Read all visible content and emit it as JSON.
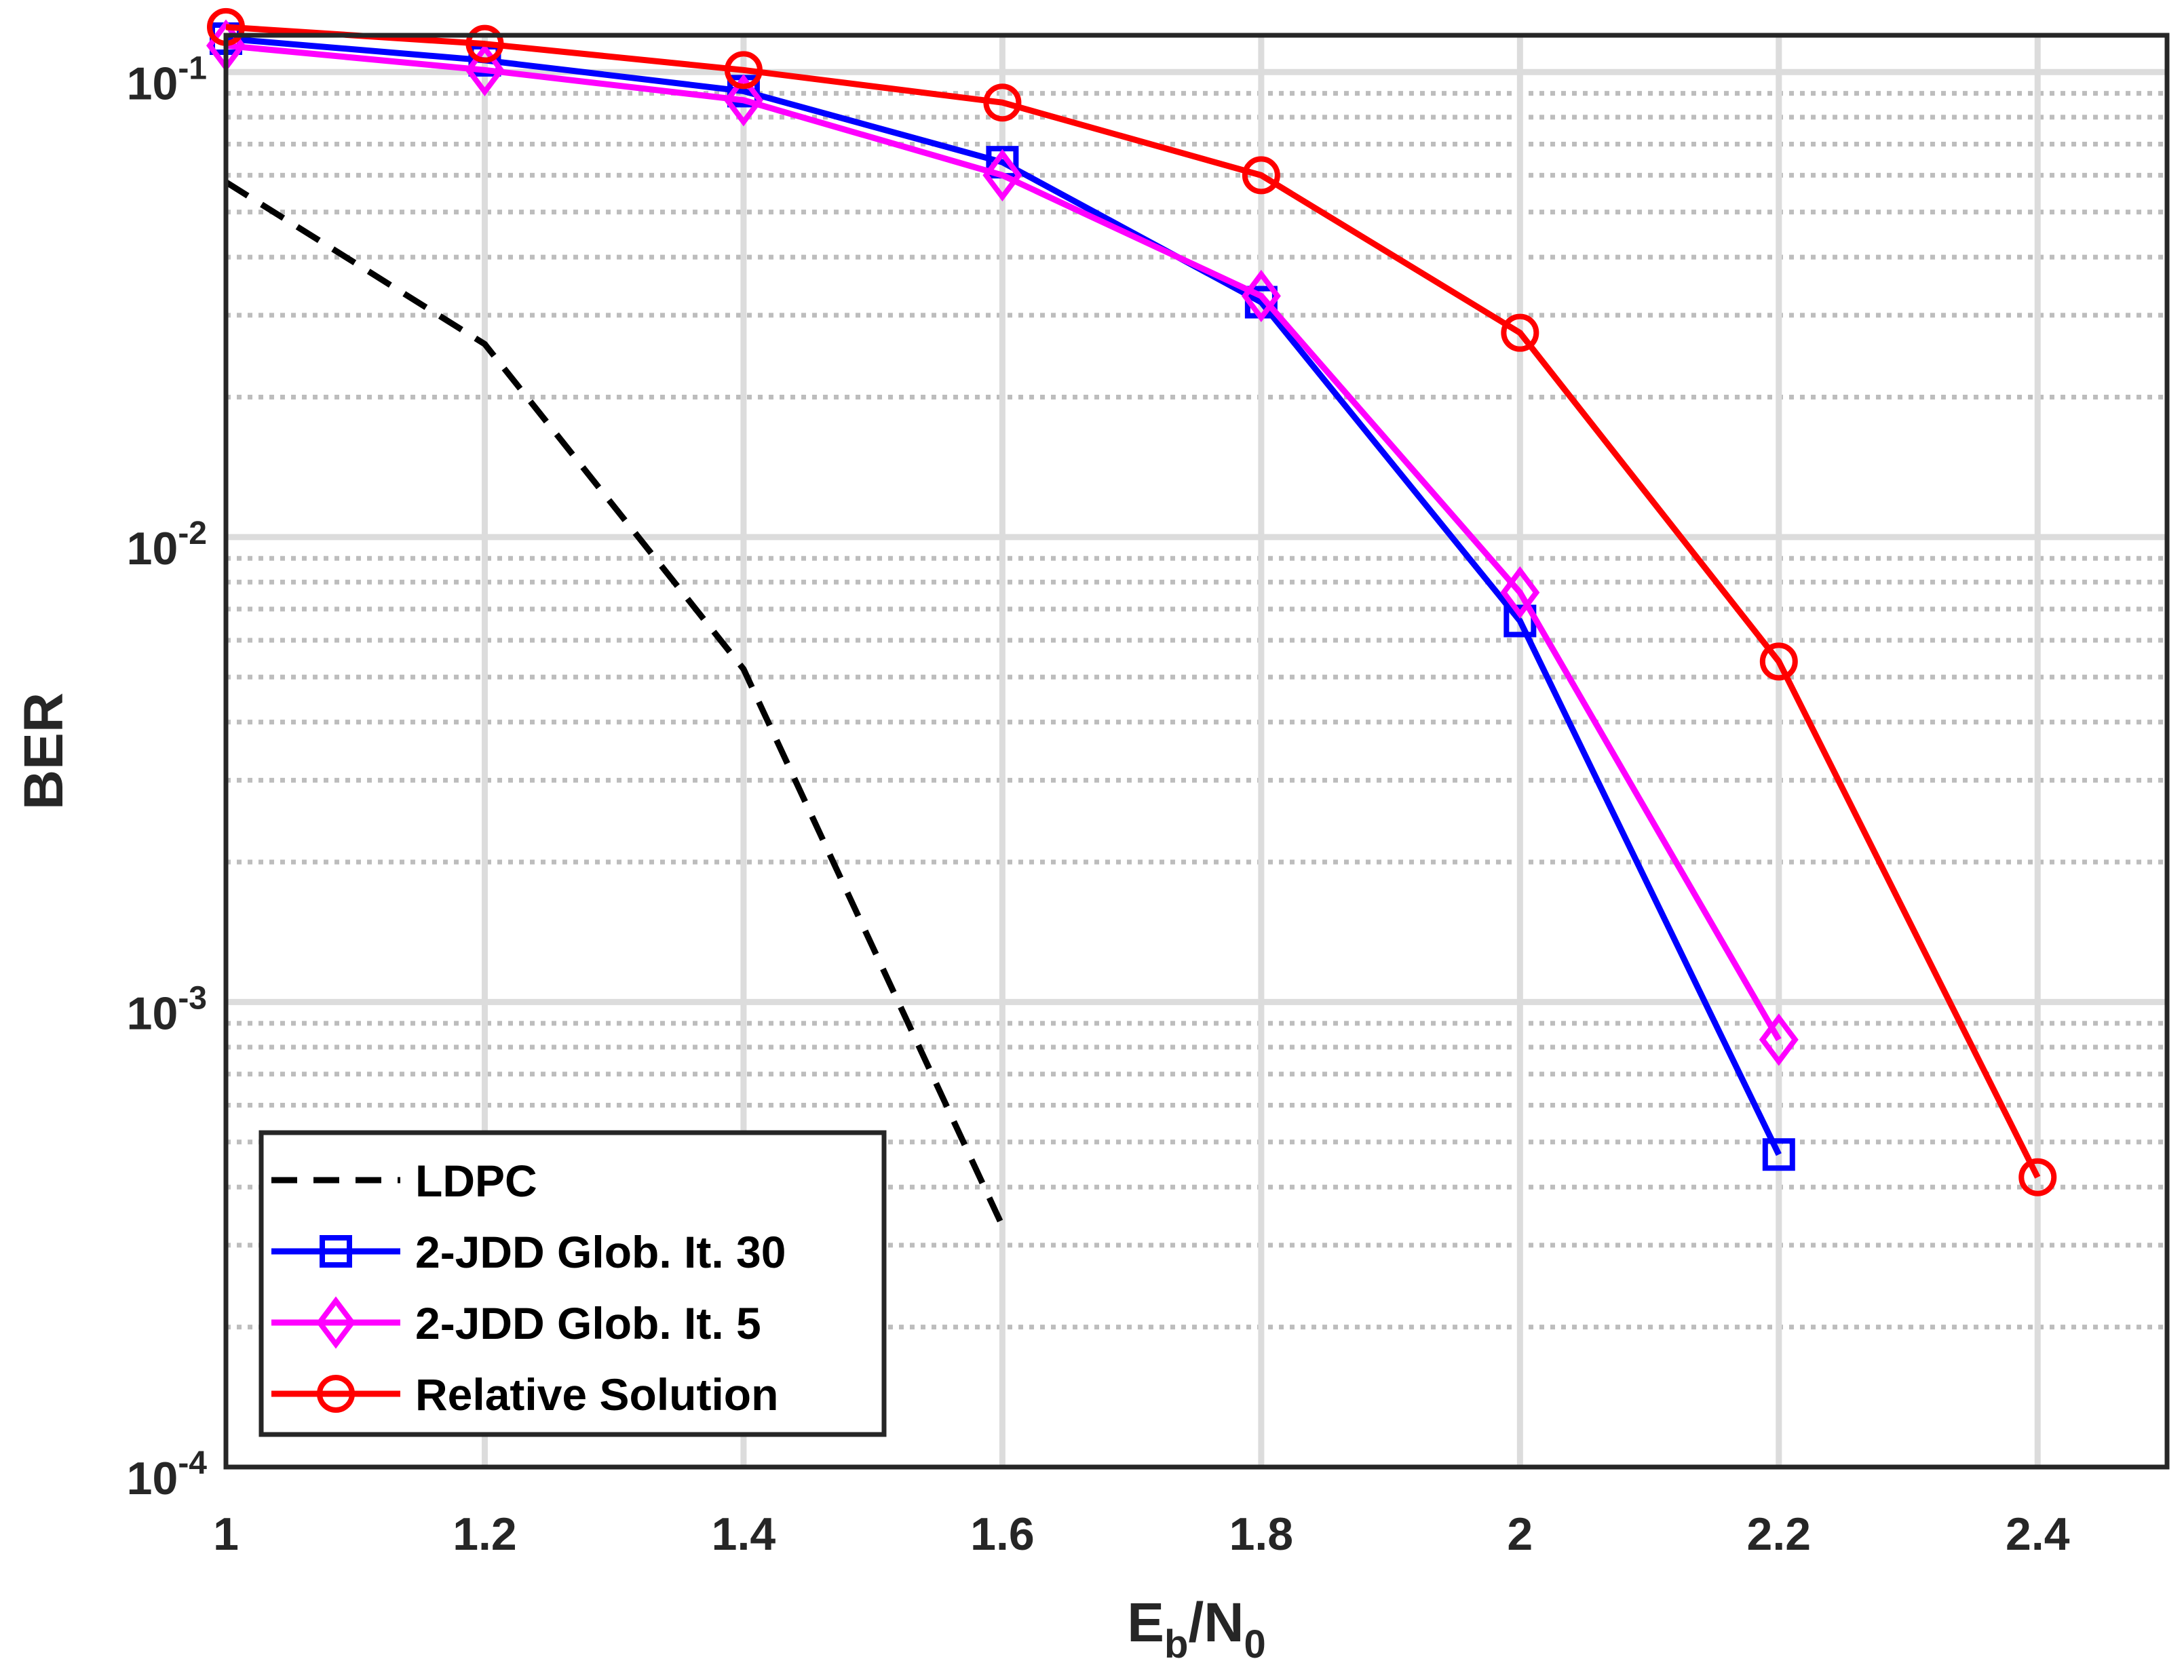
{
  "chart_data": {
    "type": "line",
    "title": "",
    "xlabel": {
      "main": "E",
      "sub1": "b",
      "mid": "/N",
      "sub2": "0"
    },
    "ylabel": "BER",
    "xscale": "linear",
    "yscale": "log",
    "xlim": [
      1,
      2.5
    ],
    "ylim": [
      0.0001,
      0.12
    ],
    "grid": true,
    "legend_position": "bottom-left",
    "xticks": [
      1,
      1.2,
      1.4,
      1.6,
      1.8,
      2,
      2.2,
      2.4
    ],
    "xtick_labels": [
      "1",
      "1.2",
      "1.4",
      "1.6",
      "1.8",
      "2",
      "2.2",
      "2.4"
    ],
    "yticks": [
      {
        "value": 0.1,
        "base": "10",
        "exp": "-1"
      },
      {
        "value": 0.01,
        "base": "10",
        "exp": "-2"
      },
      {
        "value": 0.001,
        "base": "10",
        "exp": "-3"
      },
      {
        "value": 0.0001,
        "base": "10",
        "exp": "-4"
      }
    ],
    "series": [
      {
        "name": "LDPC",
        "color": "#000000",
        "style": "dashed",
        "marker": "none",
        "x": [
          1,
          1.2,
          1.4,
          1.6
        ],
        "y": [
          0.058,
          0.026,
          0.0052,
          0.00033
        ]
      },
      {
        "name": "2-JDD Glob. It. 30",
        "color": "#0000ff",
        "style": "solid",
        "marker": "square",
        "x": [
          1,
          1.2,
          1.4,
          1.6,
          1.8,
          2,
          2.2
        ],
        "y": [
          0.118,
          0.106,
          0.091,
          0.064,
          0.032,
          0.0066,
          0.00047
        ]
      },
      {
        "name": "2-JDD Glob. It. 5",
        "color": "#ff00ff",
        "style": "solid",
        "marker": "diamond",
        "x": [
          1,
          1.2,
          1.4,
          1.6,
          1.8,
          2,
          2.2
        ],
        "y": [
          0.114,
          0.101,
          0.087,
          0.06,
          0.033,
          0.0076,
          0.00083
        ]
      },
      {
        "name": "Relative Solution",
        "color": "#ff0000",
        "style": "solid",
        "marker": "circle",
        "x": [
          1,
          1.2,
          1.4,
          1.6,
          1.8,
          2,
          2.2,
          2.4
        ],
        "y": [
          0.125,
          0.115,
          0.101,
          0.086,
          0.06,
          0.0275,
          0.0054,
          0.00042
        ]
      }
    ]
  }
}
